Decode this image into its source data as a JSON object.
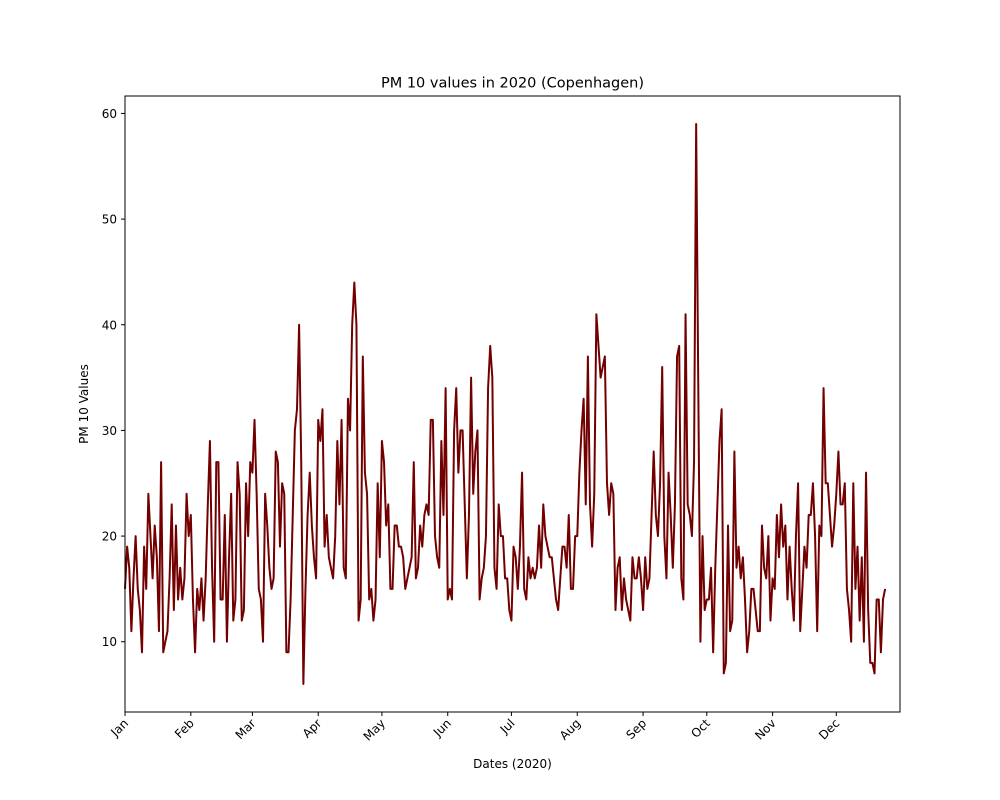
{
  "chart_data": {
    "type": "line",
    "title": "PM 10 values in 2020 (Copenhagen)",
    "xlabel": "Dates (2020)",
    "ylabel": "PM 10 Values",
    "x_range": [
      "2020-01-01",
      "2020-12-31"
    ],
    "ylim": [
      3.35,
      61.65
    ],
    "y_ticks": [
      10,
      20,
      30,
      40,
      50,
      60
    ],
    "x_ticks": [
      {
        "label": "Jan",
        "date": "2020-01-01"
      },
      {
        "label": "Feb",
        "date": "2020-02-01"
      },
      {
        "label": "Mar",
        "date": "2020-03-01"
      },
      {
        "label": "Apr",
        "date": "2020-04-01"
      },
      {
        "label": "May",
        "date": "2020-05-01"
      },
      {
        "label": "Jun",
        "date": "2020-06-01"
      },
      {
        "label": "Jul",
        "date": "2020-07-01"
      },
      {
        "label": "Aug",
        "date": "2020-08-01"
      },
      {
        "label": "Sep",
        "date": "2020-09-01"
      },
      {
        "label": "Oct",
        "date": "2020-10-01"
      },
      {
        "label": "Nov",
        "date": "2020-11-01"
      },
      {
        "label": "Dec",
        "date": "2020-12-01"
      }
    ],
    "grid": false,
    "line_color": "#730000",
    "series": [
      {
        "start_date": "2020-01-01",
        "values": [
          15,
          19,
          17,
          11,
          16,
          20,
          15,
          13,
          9,
          19,
          15,
          24,
          20,
          16,
          21,
          18,
          11,
          27,
          9,
          10,
          11,
          16,
          23,
          13,
          21,
          14,
          17,
          14,
          16,
          24,
          20,
          22,
          14,
          9,
          15,
          13,
          16,
          12,
          16,
          23,
          29,
          17,
          10,
          27,
          27,
          14,
          14,
          22,
          10,
          18,
          24,
          12,
          14,
          27,
          24,
          12,
          13,
          25,
          20,
          27,
          26,
          31,
          24,
          15,
          14,
          10,
          24,
          21,
          17,
          15,
          16,
          28,
          27,
          19,
          25,
          24,
          9,
          9,
          14,
          22,
          30,
          32,
          40,
          27,
          6,
          15,
          22,
          26,
          21,
          18,
          16,
          31,
          29,
          32,
          19,
          22,
          18,
          17,
          16,
          20,
          29,
          23,
          31,
          17,
          16,
          33,
          30,
          40,
          44,
          40,
          12,
          14,
          37,
          26,
          24,
          14,
          15,
          12,
          14,
          25,
          18,
          29,
          27,
          21,
          23,
          15,
          15,
          21,
          21,
          19,
          19,
          18,
          15,
          16,
          17,
          18,
          27,
          16,
          17,
          21,
          19,
          22,
          23,
          22,
          31,
          31,
          20,
          18,
          17,
          29,
          22,
          34,
          14,
          15,
          14,
          30,
          34,
          26,
          30,
          30,
          23,
          16,
          22,
          35,
          24,
          28,
          30,
          14,
          16,
          17,
          20,
          34,
          38,
          35,
          17,
          15,
          23,
          20,
          20,
          16,
          16,
          13,
          12,
          19,
          18,
          15,
          19,
          26,
          15,
          14,
          18,
          16,
          17,
          16,
          17,
          21,
          17,
          23,
          20,
          19,
          18,
          18,
          16,
          14,
          13,
          16,
          19,
          19,
          17,
          22,
          15,
          15,
          20,
          20,
          26,
          30,
          33,
          23,
          37,
          23,
          19,
          24,
          41,
          38,
          35,
          36,
          37,
          25,
          22,
          25,
          24,
          13,
          17,
          18,
          13,
          16,
          14,
          13,
          12,
          18,
          16,
          16,
          18,
          16,
          13,
          18,
          15,
          16,
          22,
          28,
          22,
          20,
          25,
          36,
          20,
          16,
          26,
          22,
          17,
          23,
          37,
          38,
          16,
          14,
          41,
          23,
          22,
          20,
          27,
          59,
          34,
          10,
          20,
          13,
          14,
          14,
          17,
          9,
          17,
          23,
          29,
          32,
          7,
          8,
          21,
          11,
          12,
          28,
          17,
          19,
          16,
          18,
          14,
          9,
          11,
          15,
          15,
          13,
          11,
          11,
          21,
          17,
          16,
          20,
          12,
          16,
          15,
          22,
          18,
          23,
          19,
          21,
          14,
          19,
          15,
          12,
          20,
          25,
          11,
          15,
          19,
          17,
          22,
          22,
          25,
          20,
          11,
          21,
          20,
          34,
          25,
          25,
          22,
          19,
          21,
          24,
          28,
          23,
          23,
          25,
          15,
          13,
          10,
          25,
          15,
          19,
          12,
          18,
          10,
          26,
          13,
          8,
          8,
          7,
          14,
          14,
          9,
          14,
          15
        ]
      }
    ]
  }
}
